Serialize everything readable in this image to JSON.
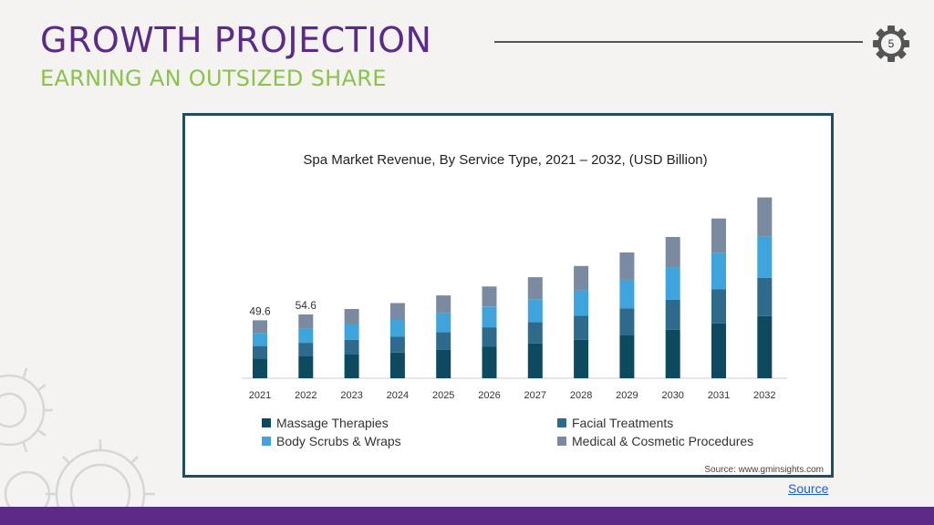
{
  "slide": {
    "title": "GROWTH PROJECTION",
    "subtitle": "EARNING AN OUTSIZED SHARE",
    "page_number": "5",
    "source_link": "Source"
  },
  "colors": {
    "purple": "#5b2b87",
    "green": "#8bc34a",
    "massage": "#0e4a5f",
    "facial": "#2d6a8c",
    "body": "#3fa3dc",
    "medical": "#7a8aa0"
  },
  "chart_data": {
    "type": "bar",
    "stacked": true,
    "title": "Spa Market Revenue, By Service Type, 2021 – 2032, (USD Billion)",
    "source_note": "Source: www.gminsights.com",
    "categories": [
      "2021",
      "2022",
      "2023",
      "2024",
      "2025",
      "2026",
      "2027",
      "2028",
      "2029",
      "2030",
      "2031",
      "2032"
    ],
    "series": [
      {
        "name": "Massage Therapies",
        "color": "#0e4a5f",
        "values": [
          17.0,
          18.7,
          20.3,
          22.0,
          24.3,
          26.9,
          29.7,
          33.0,
          37.0,
          41.5,
          47.0,
          53.2
        ]
      },
      {
        "name": "Facial Treatments",
        "color": "#2d6a8c",
        "values": [
          10.6,
          11.6,
          12.6,
          13.7,
          15.1,
          16.7,
          18.4,
          20.4,
          22.9,
          25.7,
          29.0,
          32.8
        ]
      },
      {
        "name": "Body Scrubs & Wraps",
        "color": "#3fa3dc",
        "values": [
          11.2,
          12.4,
          13.5,
          14.6,
          16.1,
          17.8,
          19.6,
          21.8,
          24.4,
          27.5,
          31.0,
          35.1
        ]
      },
      {
        "name": "Medical & Cosmetic Procedures",
        "color": "#7a8aa0",
        "values": [
          10.8,
          11.9,
          12.9,
          14.0,
          15.4,
          17.1,
          18.8,
          20.9,
          23.3,
          26.2,
          29.7,
          33.6
        ]
      }
    ],
    "data_labels": [
      {
        "category": "2021",
        "text": "49.6"
      },
      {
        "category": "2022",
        "text": "54.6"
      }
    ],
    "ylim": [
      0,
      170
    ],
    "legend_position": "bottom"
  }
}
